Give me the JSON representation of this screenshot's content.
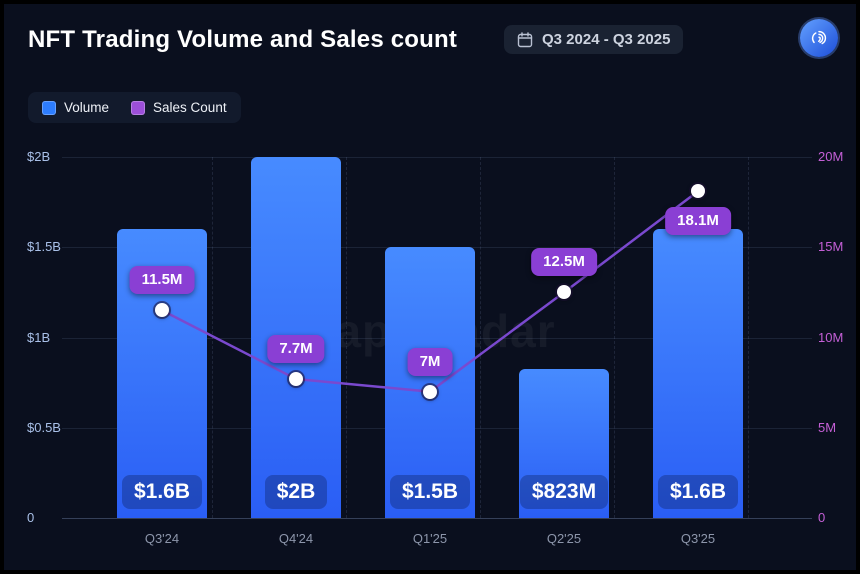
{
  "header": {
    "title": "NFT Trading Volume and Sales count",
    "date_range": "Q3 2024 - Q3 2025"
  },
  "legend": [
    {
      "label": "Volume",
      "color": "#2d7dff"
    },
    {
      "label": "Sales Count",
      "color": "#9c4fd9"
    }
  ],
  "watermark": {
    "text": "appRadar"
  },
  "chart_data": {
    "type": "combo-bar-line",
    "title": "NFT Trading Volume and Sales count",
    "categories": [
      "Q3'24",
      "Q4'24",
      "Q1'25",
      "Q2'25",
      "Q3'25"
    ],
    "series": [
      {
        "name": "Volume",
        "type": "bar",
        "axis": "left",
        "unit": "USD",
        "values_billion": [
          1.6,
          2.0,
          1.5,
          0.823,
          1.6
        ],
        "labels": [
          "$1.6B",
          "$2B",
          "$1.5B",
          "$823M",
          "$1.6B"
        ]
      },
      {
        "name": "Sales Count",
        "type": "line",
        "axis": "right",
        "unit": "sales",
        "values_million": [
          11.5,
          7.7,
          7.0,
          12.5,
          18.1
        ],
        "labels": [
          "11.5M",
          "7.7M",
          "7M",
          "12.5M",
          "18.1M"
        ]
      }
    ],
    "left_axis": {
      "ticks": [
        "$2B",
        "$1.5B",
        "$1B",
        "$0.5B",
        "0"
      ],
      "min": 0,
      "max_billion": 2.0
    },
    "right_axis": {
      "ticks": [
        "20M",
        "15M",
        "10M",
        "5M",
        "0"
      ],
      "min": 0,
      "max_million": 20
    },
    "grid": true,
    "legend_position": "top-left"
  },
  "colors": {
    "background": "#0a0f1e",
    "volume_bar_top": "#478bff",
    "volume_bar_bottom": "#2a5ef5",
    "line": "#7a49cf",
    "badge": "#8a3fd4",
    "left_axis_text": "#a9c0e8",
    "right_axis_text": "#c45fd6",
    "accent_blue": "#2d7dff",
    "accent_purple": "#9c4fd9"
  }
}
